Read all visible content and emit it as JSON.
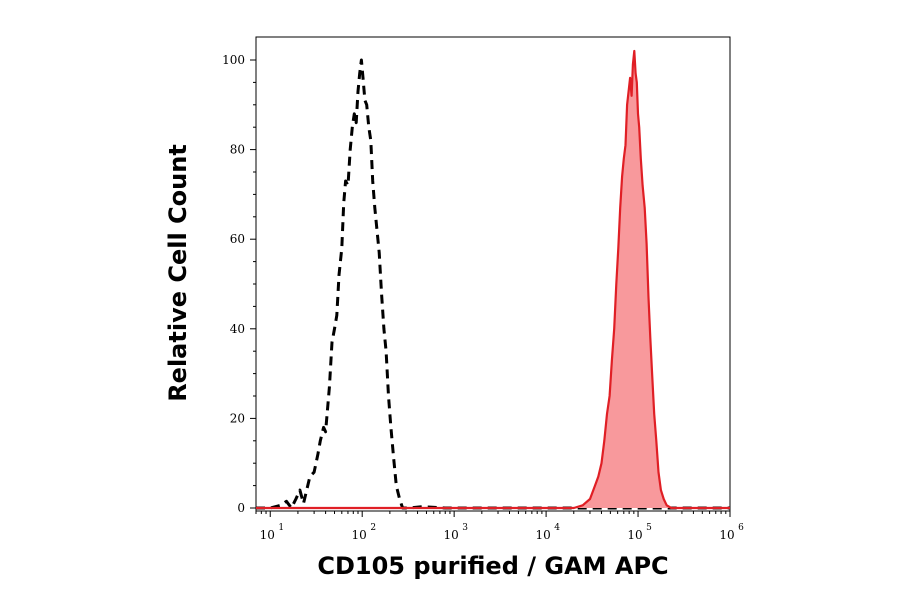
{
  "chart_data": {
    "type": "area",
    "xlabel": "CD105 purified / GAM APC",
    "ylabel": "Relative Cell Count",
    "x_scale": "log",
    "xlim": [
      7,
      1000000
    ],
    "ylim": [
      0,
      105
    ],
    "x_ticks": [
      {
        "value": 10,
        "base": "10",
        "exp": "1"
      },
      {
        "value": 100,
        "base": "10",
        "exp": "2"
      },
      {
        "value": 1000,
        "base": "10",
        "exp": "3"
      },
      {
        "value": 10000,
        "base": "10",
        "exp": "4"
      },
      {
        "value": 100000,
        "base": "10",
        "exp": "5"
      },
      {
        "value": 1000000,
        "base": "10",
        "exp": "6"
      }
    ],
    "y_ticks": [
      {
        "value": 0,
        "label": "0"
      },
      {
        "value": 20,
        "label": "20"
      },
      {
        "value": 40,
        "label": "40"
      },
      {
        "value": 60,
        "label": "60"
      },
      {
        "value": 80,
        "label": "80"
      },
      {
        "value": 100,
        "label": "100"
      }
    ],
    "grid": false,
    "series": [
      {
        "style": "dashed",
        "color": "#000000",
        "fill": "none",
        "points": [
          [
            7,
            0
          ],
          [
            10,
            0
          ],
          [
            13,
            0.6
          ],
          [
            15,
            1.5
          ],
          [
            17,
            0
          ],
          [
            19,
            2
          ],
          [
            21,
            4
          ],
          [
            23,
            1
          ],
          [
            27,
            7
          ],
          [
            30,
            8
          ],
          [
            33,
            12
          ],
          [
            35,
            15
          ],
          [
            38,
            18
          ],
          [
            40,
            17
          ],
          [
            44,
            27
          ],
          [
            47,
            37
          ],
          [
            50,
            40
          ],
          [
            53,
            43
          ],
          [
            56,
            52
          ],
          [
            60,
            58
          ],
          [
            63,
            68
          ],
          [
            66,
            73
          ],
          [
            70,
            72
          ],
          [
            74,
            80
          ],
          [
            78,
            85
          ],
          [
            82,
            88
          ],
          [
            86,
            86
          ],
          [
            90,
            93
          ],
          [
            94,
            97
          ],
          [
            98,
            100
          ],
          [
            102,
            96
          ],
          [
            107,
            91
          ],
          [
            112,
            90
          ],
          [
            118,
            85
          ],
          [
            124,
            82
          ],
          [
            130,
            73
          ],
          [
            137,
            67
          ],
          [
            145,
            62
          ],
          [
            153,
            57
          ],
          [
            162,
            48
          ],
          [
            172,
            40
          ],
          [
            182,
            35
          ],
          [
            193,
            25
          ],
          [
            205,
            18
          ],
          [
            220,
            11
          ],
          [
            235,
            5
          ],
          [
            255,
            2
          ],
          [
            275,
            0
          ],
          [
            320,
            0
          ],
          [
            450,
            0.3
          ],
          [
            800,
            0
          ],
          [
            2000,
            0
          ],
          [
            100000,
            0
          ],
          [
            1000000,
            0
          ]
        ]
      },
      {
        "style": "solid",
        "color": "#e01f25",
        "fill": "#f8999c",
        "points": [
          [
            7,
            0
          ],
          [
            20000,
            0
          ],
          [
            25000,
            0.6
          ],
          [
            30000,
            2
          ],
          [
            34000,
            5
          ],
          [
            37000,
            7
          ],
          [
            40000,
            10
          ],
          [
            43000,
            15
          ],
          [
            46000,
            21
          ],
          [
            49000,
            25
          ],
          [
            52000,
            33
          ],
          [
            55000,
            40
          ],
          [
            58000,
            50
          ],
          [
            61000,
            58
          ],
          [
            64000,
            67
          ],
          [
            67000,
            74
          ],
          [
            70000,
            78
          ],
          [
            73000,
            81
          ],
          [
            76000,
            90
          ],
          [
            79000,
            93
          ],
          [
            82000,
            96
          ],
          [
            85000,
            92
          ],
          [
            88000,
            99
          ],
          [
            91000,
            102
          ],
          [
            94000,
            97
          ],
          [
            97000,
            95
          ],
          [
            100000,
            88
          ],
          [
            103000,
            85
          ],
          [
            107000,
            78
          ],
          [
            112000,
            72
          ],
          [
            118000,
            67
          ],
          [
            124000,
            59
          ],
          [
            130000,
            47
          ],
          [
            136000,
            38
          ],
          [
            142000,
            30
          ],
          [
            150000,
            21
          ],
          [
            158000,
            15
          ],
          [
            167000,
            8
          ],
          [
            177000,
            4
          ],
          [
            190000,
            2
          ],
          [
            205000,
            0.6
          ],
          [
            230000,
            0
          ],
          [
            300000,
            0
          ],
          [
            1000000,
            0
          ]
        ]
      }
    ]
  }
}
